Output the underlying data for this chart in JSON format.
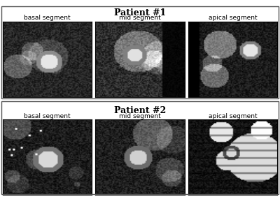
{
  "title1": "Patient #1",
  "title2": "Patient #2",
  "labels_row1": [
    "basal segment",
    "mid segment",
    "apical segment"
  ],
  "labels_row2": [
    "basal segment",
    "mid segment",
    "apical segment"
  ],
  "bg_color": "#ffffff",
  "border_color": "#000000",
  "title_fontsize": 9,
  "label_fontsize": 6.5,
  "fig_width": 4.0,
  "fig_height": 2.85,
  "dpi": 100
}
